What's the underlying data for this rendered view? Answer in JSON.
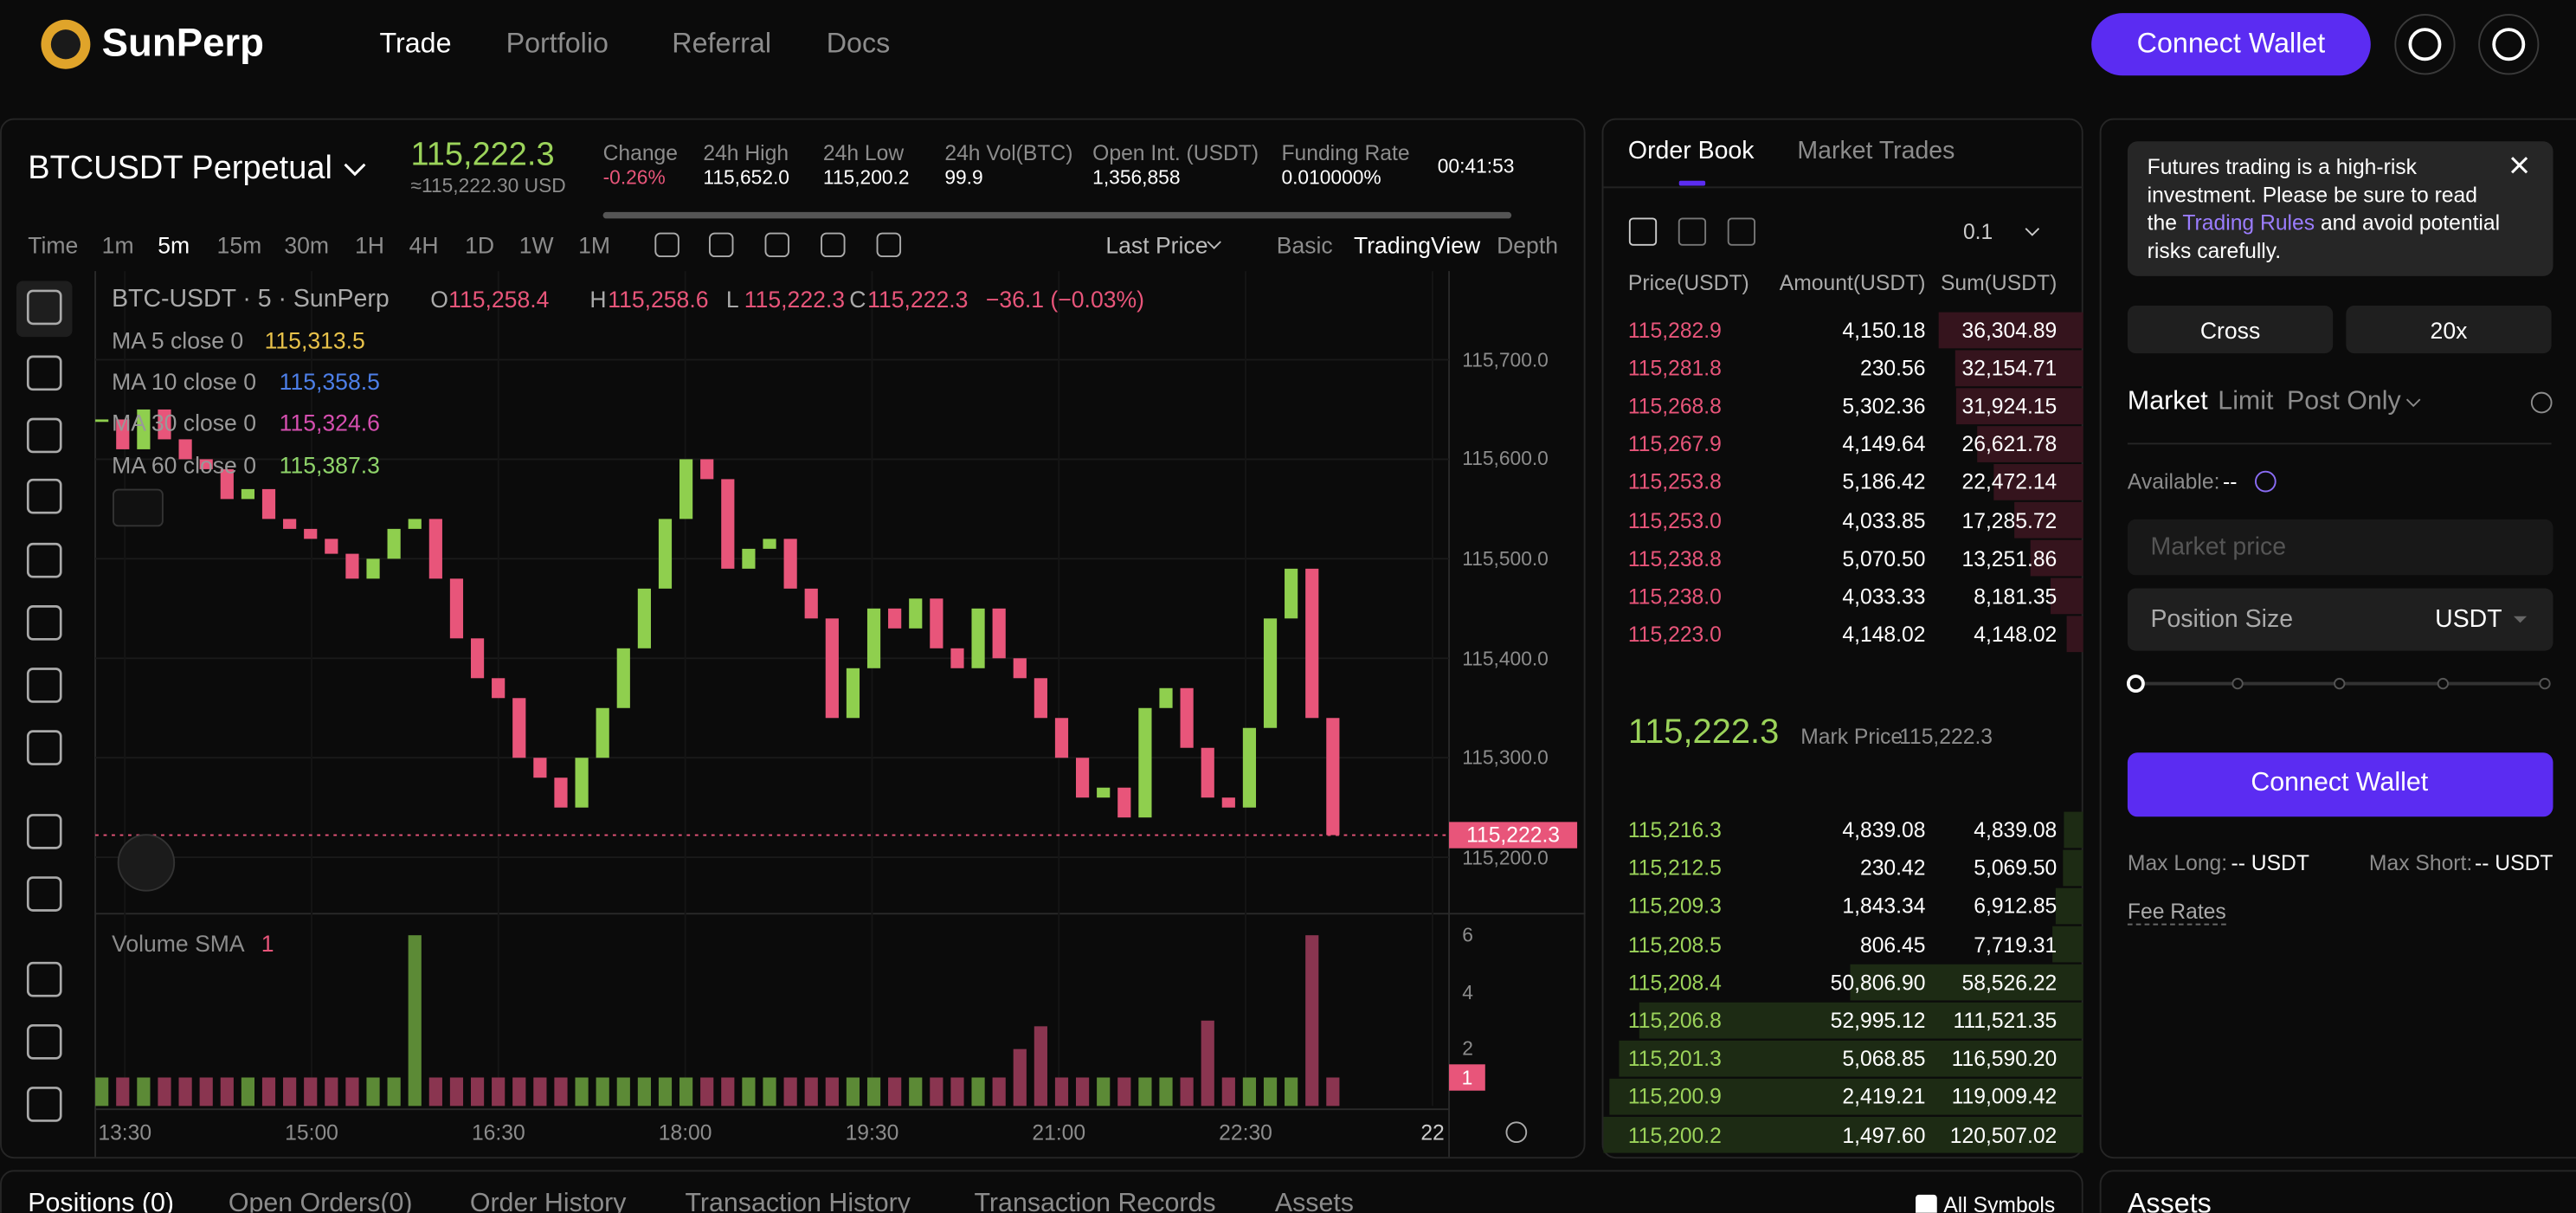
{
  "nav": {
    "brand": "SunPerp",
    "links": [
      "Trade",
      "Portfolio",
      "Referral",
      "Docs"
    ],
    "connect_wallet": "Connect Wallet"
  },
  "header": {
    "symbol": "BTCUSDT Perpetual",
    "price": "115,222.3",
    "price_usd": "≈115,222.30 USD",
    "stats": [
      {
        "label": "Change",
        "value": "-0.26%"
      },
      {
        "label": "24h High",
        "value": "115,652.0"
      },
      {
        "label": "24h Low",
        "value": "115,200.2"
      },
      {
        "label": "24h Vol(BTC)",
        "value": "99.9"
      },
      {
        "label": "Open Int. (USDT)",
        "value": "1,356,858"
      },
      {
        "label": "Funding Rate",
        "value": "0.010000%"
      }
    ],
    "countdown": "00:41:53"
  },
  "toolbar": {
    "intervals": [
      "Time",
      "1m",
      "5m",
      "15m",
      "30m",
      "1H",
      "4H",
      "1D",
      "1W",
      "1M"
    ],
    "price_type": "Last Price",
    "views": [
      "Basic",
      "TradingView",
      "Depth"
    ]
  },
  "chart": {
    "type": "candlestick",
    "legend": {
      "symbol": "BTC-USDT · 5 · SunPerp",
      "ohlc": [
        {
          "key": "O",
          "value": "115,258.4"
        },
        {
          "key": "H",
          "value": "115,258.6"
        },
        {
          "key": "L",
          "value": "115,222.3"
        },
        {
          "key": "C",
          "value": "115,222.3"
        }
      ],
      "change": "−36.1 (−0.03%)"
    },
    "mas": [
      {
        "name": "MA 5 close 0",
        "value": "115,313.5",
        "color": "#e8c24a"
      },
      {
        "name": "MA 10 close 0",
        "value": "115,358.5",
        "color": "#4d7fe8"
      },
      {
        "name": "MA 30 close 0",
        "value": "115,324.6",
        "color": "#d64fb0"
      },
      {
        "name": "MA 60 close 0",
        "value": "115,387.3",
        "color": "#8fd46a"
      }
    ],
    "closes": [
      115640,
      115610,
      115650,
      115620,
      115600,
      115590,
      115560,
      115570,
      115540,
      115530,
      115520,
      115505,
      115480,
      115500,
      115530,
      115540,
      115480,
      115420,
      115380,
      115360,
      115300,
      115280,
      115250,
      115300,
      115350,
      115410,
      115470,
      115540,
      115600,
      115580,
      115490,
      115510,
      115520,
      115470,
      115440,
      115340,
      115390,
      115450,
      115430,
      115460,
      115410,
      115390,
      115450,
      115400,
      115380,
      115340,
      115300,
      115260,
      115270,
      115240,
      115350,
      115370,
      115310,
      115260,
      115250,
      115330,
      115440,
      115490,
      115340,
      115222.3
    ],
    "colors": {
      "up": "#8fcf4e",
      "down": "#e8557a"
    },
    "ylim": [
      115145,
      115789
    ],
    "yticks": [
      {
        "value": 115200,
        "label": "115,200.0"
      },
      {
        "value": 115300,
        "label": "115,300.0"
      },
      {
        "value": 115400,
        "label": "115,400.0"
      },
      {
        "value": 115500,
        "label": "115,500.0"
      },
      {
        "value": 115600,
        "label": "115,600.0"
      },
      {
        "value": 115700,
        "label": "115,700.0"
      }
    ],
    "last_price": {
      "value": 115222.3,
      "label": "115,222.3"
    },
    "volume": {
      "title": "Volume SMA",
      "param": "1",
      "values": [
        1,
        1,
        1,
        1,
        1,
        1,
        1,
        1,
        1,
        1,
        1,
        1,
        1,
        1,
        1,
        6,
        1,
        1,
        1,
        1,
        1,
        1,
        1,
        1,
        1,
        1,
        1,
        1,
        1,
        1,
        1,
        1,
        1,
        1,
        1,
        1,
        1,
        1,
        1,
        1,
        1,
        1,
        1,
        1,
        2,
        2.8,
        1,
        1,
        1,
        1,
        1,
        1,
        1,
        3,
        1,
        1,
        1,
        1,
        6,
        1
      ],
      "ylim": [
        0,
        6.7
      ],
      "yticks": [
        2,
        4,
        6
      ],
      "tag": 1
    },
    "xticks": [
      "13:30",
      "15:00",
      "16:30",
      "18:00",
      "19:30",
      "21:00",
      "22:30",
      "22"
    ]
  },
  "order_book": {
    "tabs": [
      "Order Book",
      "Market Trades"
    ],
    "precision": "0.1",
    "headers": [
      "Price(USDT)",
      "Amount(USDT)",
      "Sum(USDT)"
    ],
    "asks": [
      {
        "price": "115,282.9",
        "amount": "4,150.18",
        "sum": {
          "value": 36304.89,
          "label": "36,304.89"
        }
      },
      {
        "price": "115,281.8",
        "amount": "230.56",
        "sum": {
          "value": 32154.71,
          "label": "32,154.71"
        }
      },
      {
        "price": "115,268.8",
        "amount": "5,302.36",
        "sum": {
          "value": 31924.15,
          "label": "31,924.15"
        }
      },
      {
        "price": "115,267.9",
        "amount": "4,149.64",
        "sum": {
          "value": 26621.78,
          "label": "26,621.78"
        }
      },
      {
        "price": "115,253.8",
        "amount": "5,186.42",
        "sum": {
          "value": 22472.14,
          "label": "22,472.14"
        }
      },
      {
        "price": "115,253.0",
        "amount": "4,033.85",
        "sum": {
          "value": 17285.72,
          "label": "17,285.72"
        }
      },
      {
        "price": "115,238.8",
        "amount": "5,070.50",
        "sum": {
          "value": 13251.86,
          "label": "13,251.86"
        }
      },
      {
        "price": "115,238.0",
        "amount": "4,033.33",
        "sum": {
          "value": 8181.35,
          "label": "8,181.35"
        }
      },
      {
        "price": "115,223.0",
        "amount": "4,148.02",
        "sum": {
          "value": 4148.02,
          "label": "4,148.02"
        }
      }
    ],
    "mid_price": "115,222.3",
    "mark_label": "Mark Price",
    "mark_price": "115,222.3",
    "bids": [
      {
        "price": "115,216.3",
        "amount": "4,839.08",
        "sum": {
          "value": 4839.08,
          "label": "4,839.08"
        }
      },
      {
        "price": "115,212.5",
        "amount": "230.42",
        "sum": {
          "value": 5069.5,
          "label": "5,069.50"
        }
      },
      {
        "price": "115,209.3",
        "amount": "1,843.34",
        "sum": {
          "value": 6912.85,
          "label": "6,912.85"
        }
      },
      {
        "price": "115,208.5",
        "amount": "806.45",
        "sum": {
          "value": 7719.31,
          "label": "7,719.31"
        }
      },
      {
        "price": "115,208.4",
        "amount": "50,806.90",
        "sum": {
          "value": 58526.22,
          "label": "58,526.22"
        }
      },
      {
        "price": "115,206.8",
        "amount": "52,995.12",
        "sum": {
          "value": 111521.35,
          "label": "111,521.35"
        }
      },
      {
        "price": "115,201.3",
        "amount": "5,068.85",
        "sum": {
          "value": 116590.2,
          "label": "116,590.20"
        }
      },
      {
        "price": "115,200.9",
        "amount": "2,419.21",
        "sum": {
          "value": 119009.42,
          "label": "119,009.42"
        }
      },
      {
        "price": "115,200.2",
        "amount": "1,497.60",
        "sum": {
          "value": 120507.02,
          "label": "120,507.02"
        }
      }
    ]
  },
  "trade": {
    "notice": [
      "Futures trading is a high-risk investment. Please be sure to read the ",
      "Trading Rules",
      " and avoid potential risks carefully."
    ],
    "margin": [
      "Cross",
      "20x"
    ],
    "order_types": [
      "Market",
      "Limit",
      "Post Only"
    ],
    "available_label": "Available:",
    "available_value": "--",
    "price_placeholder": "Market price",
    "size_label": "Position Size",
    "size_unit": "USDT",
    "button": "Connect Wallet",
    "max_long_label": "Max Long:",
    "max_long_value": "-- USDT",
    "max_short_label": "Max Short:",
    "max_short_value": "-- USDT",
    "fee_rates": "Fee Rates"
  },
  "bottom": {
    "tabs": [
      "Positions (0)",
      "Open Orders(0)",
      "Order History",
      "Transaction History",
      "Transaction Records",
      "Assets"
    ],
    "all_symbols": "All Symbols",
    "assets": "Assets"
  }
}
